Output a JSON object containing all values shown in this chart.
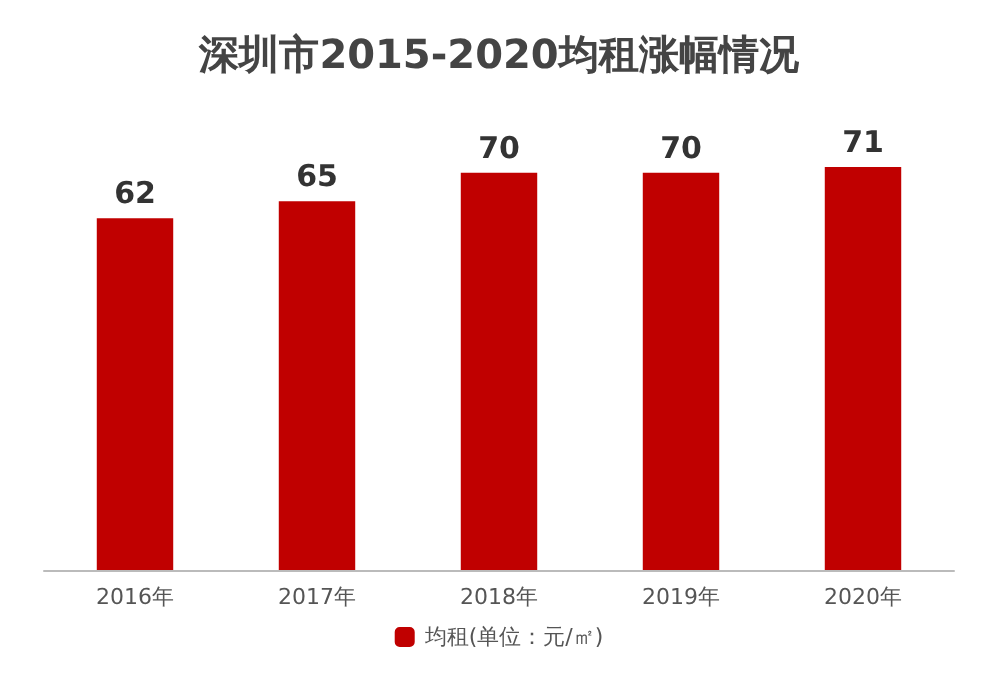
{
  "chart_data": {
    "type": "bar",
    "title": "深圳市2015-2020均租涨幅情况",
    "categories": [
      "2016年",
      "2017年",
      "2018年",
      "2019年",
      "2020年"
    ],
    "series": [
      {
        "name": "均租(单位：元/㎡)",
        "color": "#c00000",
        "values": [
          62,
          65,
          70,
          70,
          71
        ]
      }
    ],
    "tick_labels": "x",
    "data_labels": true,
    "legend": "bottom"
  }
}
